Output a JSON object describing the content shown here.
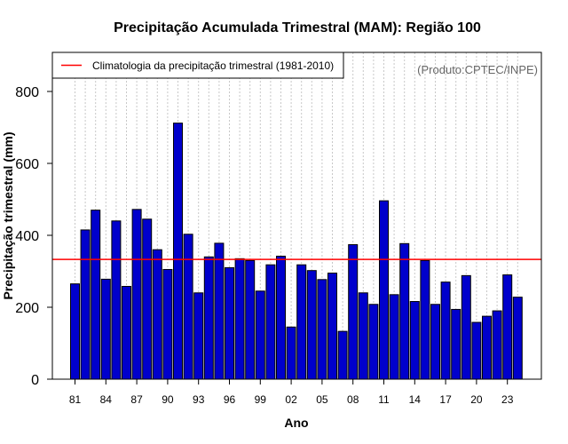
{
  "chart_data": {
    "type": "bar",
    "title": "Precipitação Acumulada Trimestral (MAM): Região 100",
    "xlabel": "Ano",
    "ylabel": "Precipitação trimestral (mm)",
    "ylim": [
      0,
      900
    ],
    "yticks": [
      0,
      200,
      400,
      600,
      800
    ],
    "years": [
      1981,
      1982,
      1983,
      1984,
      1985,
      1986,
      1987,
      1988,
      1989,
      1990,
      1991,
      1992,
      1993,
      1994,
      1995,
      1996,
      1997,
      1998,
      1999,
      2000,
      2001,
      2002,
      2003,
      2004,
      2005,
      2006,
      2007,
      2008,
      2009,
      2010,
      2011,
      2012,
      2013,
      2014,
      2015,
      2016,
      2017,
      2018,
      2019,
      2020,
      2021,
      2022,
      2023,
      2024
    ],
    "xtick_labels": [
      "81",
      "84",
      "87",
      "90",
      "93",
      "96",
      "99",
      "02",
      "05",
      "08",
      "11",
      "14",
      "17",
      "20",
      "23"
    ],
    "xtick_indices": [
      0,
      3,
      6,
      9,
      12,
      15,
      18,
      21,
      24,
      27,
      30,
      33,
      36,
      39,
      42
    ],
    "values": [
      265,
      415,
      470,
      278,
      440,
      258,
      472,
      445,
      360,
      305,
      712,
      403,
      240,
      340,
      378,
      310,
      335,
      330,
      245,
      318,
      342,
      145,
      318,
      302,
      277,
      295,
      133,
      374,
      240,
      208,
      496,
      235,
      377,
      216,
      330,
      208,
      270,
      194,
      288,
      158,
      175,
      190,
      290,
      228
    ],
    "climatology": 333,
    "bar_color": "#0000cc",
    "climatology_color": "#ff0000",
    "legend": {
      "label": "Climatologia da precipitação trimestral (1981-2010)",
      "position": "top-left"
    },
    "credit": "(Produto:CPTEC/INPE)",
    "grid": "vertical-dotted"
  }
}
